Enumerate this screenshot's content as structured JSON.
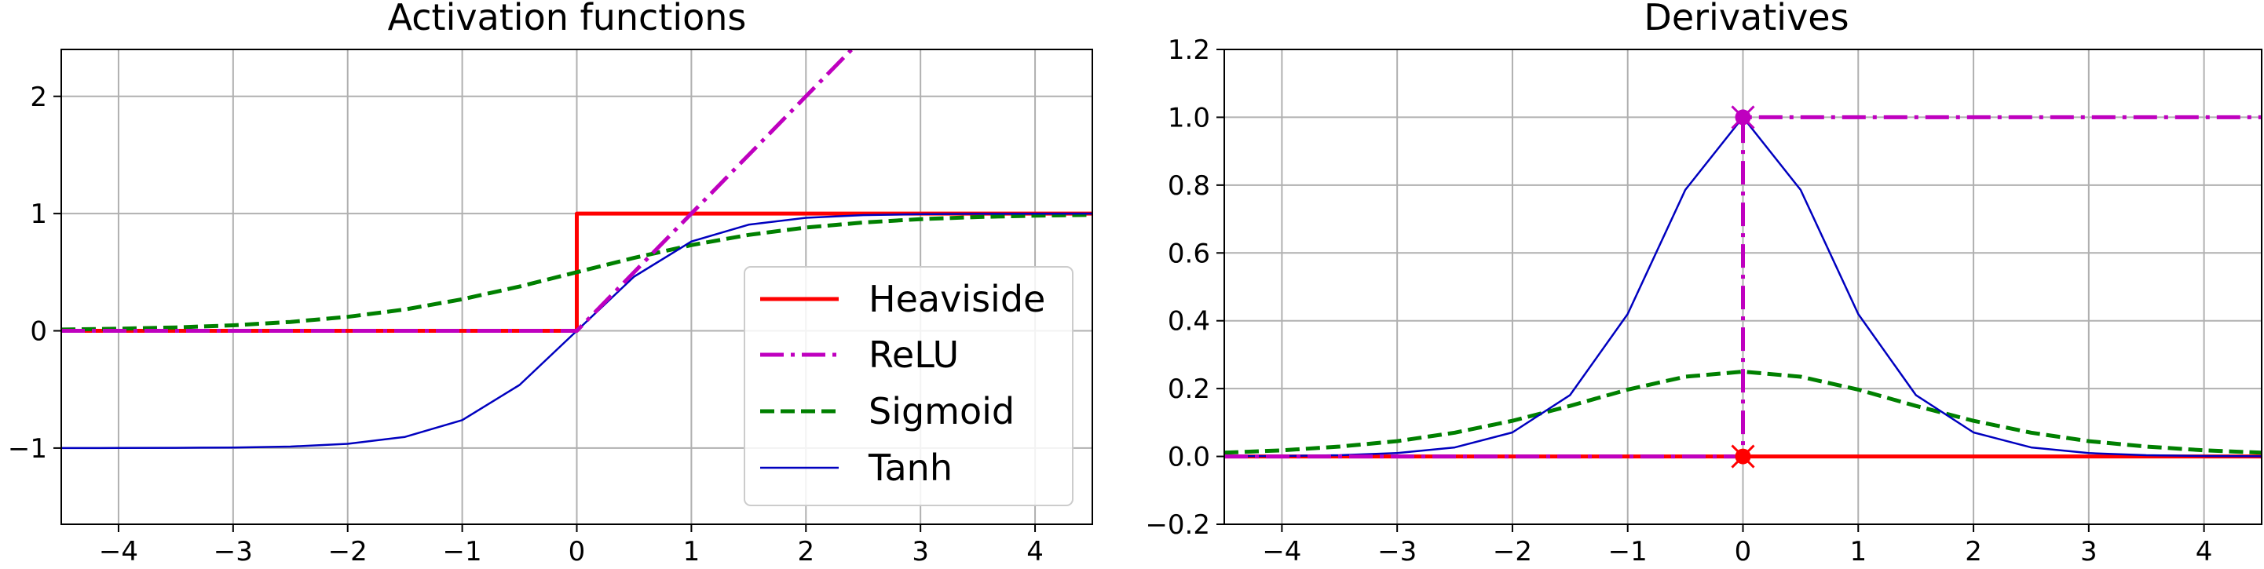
{
  "chart_data": [
    {
      "type": "line",
      "title": "Activation functions",
      "xlabel": "",
      "ylabel": "",
      "xlim": [
        -4.5,
        4.5
      ],
      "ylim": [
        -1.65,
        2.4
      ],
      "xticks": [
        -4,
        -3,
        -2,
        -1,
        0,
        1,
        2,
        3,
        4
      ],
      "xtick_labels": [
        "−4",
        "−3",
        "−2",
        "−1",
        "0",
        "1",
        "2",
        "3",
        "4"
      ],
      "yticks": [
        -1,
        0,
        1,
        2
      ],
      "ytick_labels": [
        "−1",
        "0",
        "1",
        "2"
      ],
      "grid": true,
      "legend": "lower-right",
      "series": [
        {
          "name": "Heaviside",
          "color": "#ff0000",
          "style": "solid",
          "x": [
            -4.5,
            0,
            0,
            4.5
          ],
          "y": [
            0,
            0,
            1,
            1
          ]
        },
        {
          "name": "ReLU",
          "color": "#bf00bf",
          "style": "dashdot",
          "x": [
            -4.5,
            0,
            2.4
          ],
          "y": [
            0,
            0,
            2.4
          ]
        },
        {
          "name": "Sigmoid",
          "color": "#008000",
          "style": "dashed",
          "x": [
            -4.5,
            -4,
            -3.5,
            -3,
            -2.5,
            -2,
            -1.5,
            -1,
            -0.5,
            0,
            0.5,
            1,
            1.5,
            2,
            2.5,
            3,
            3.5,
            4,
            4.5
          ],
          "y": [
            0.011,
            0.018,
            0.029,
            0.047,
            0.076,
            0.119,
            0.182,
            0.269,
            0.378,
            0.5,
            0.622,
            0.731,
            0.818,
            0.881,
            0.924,
            0.953,
            0.971,
            0.982,
            0.989
          ]
        },
        {
          "name": "Tanh",
          "color": "#0000bf",
          "style": "solid",
          "x": [
            -4.5,
            -4,
            -3.5,
            -3,
            -2.5,
            -2,
            -1.5,
            -1,
            -0.5,
            0,
            0.5,
            1,
            1.5,
            2,
            2.5,
            3,
            3.5,
            4,
            4.5
          ],
          "y": [
            -1.0,
            -0.999,
            -0.998,
            -0.995,
            -0.987,
            -0.964,
            -0.905,
            -0.762,
            -0.462,
            0,
            0.462,
            0.762,
            0.905,
            0.964,
            0.987,
            0.995,
            0.998,
            0.999,
            1.0
          ]
        }
      ]
    },
    {
      "type": "line",
      "title": "Derivatives",
      "xlabel": "",
      "ylabel": "",
      "xlim": [
        -4.5,
        4.5
      ],
      "ylim": [
        -0.2,
        1.2
      ],
      "xticks": [
        -4,
        -3,
        -2,
        -1,
        0,
        1,
        2,
        3,
        4
      ],
      "xtick_labels": [
        "−4",
        "−3",
        "−2",
        "−1",
        "0",
        "1",
        "2",
        "3",
        "4"
      ],
      "yticks": [
        -0.2,
        0.0,
        0.2,
        0.4,
        0.6,
        0.8,
        1.0,
        1.2
      ],
      "ytick_labels": [
        "−0.2",
        "0.0",
        "0.2",
        "0.4",
        "0.6",
        "0.8",
        "1.0",
        "1.2"
      ],
      "grid": true,
      "series": [
        {
          "name": "Heaviside",
          "color": "#ff0000",
          "style": "solid",
          "x": [
            -4.5,
            4.5
          ],
          "y": [
            0,
            0
          ],
          "markers": [
            {
              "x": 0,
              "y": 0,
              "symbol": "x"
            },
            {
              "x": 0,
              "y": 0,
              "symbol": "o"
            }
          ]
        },
        {
          "name": "ReLU",
          "color": "#bf00bf",
          "style": "dashdot",
          "x": [
            -4.5,
            0,
            0,
            4.5
          ],
          "y": [
            0,
            0,
            1,
            1
          ],
          "markers": [
            {
              "x": 0,
              "y": 1,
              "symbol": "x"
            },
            {
              "x": 0,
              "y": 1,
              "symbol": "o"
            }
          ]
        },
        {
          "name": "Sigmoid",
          "color": "#008000",
          "style": "dashed",
          "x": [
            -4.5,
            -4,
            -3.5,
            -3,
            -2.5,
            -2,
            -1.5,
            -1,
            -0.5,
            0,
            0.5,
            1,
            1.5,
            2,
            2.5,
            3,
            3.5,
            4,
            4.5
          ],
          "y": [
            0.011,
            0.018,
            0.029,
            0.045,
            0.07,
            0.105,
            0.149,
            0.197,
            0.235,
            0.25,
            0.235,
            0.197,
            0.149,
            0.105,
            0.07,
            0.045,
            0.029,
            0.018,
            0.011
          ]
        },
        {
          "name": "Tanh",
          "color": "#0000bf",
          "style": "solid",
          "x": [
            -4.5,
            -4,
            -3.5,
            -3,
            -2.5,
            -2,
            -1.5,
            -1,
            -0.5,
            0,
            0.5,
            1,
            1.5,
            2,
            2.5,
            3,
            3.5,
            4,
            4.5
          ],
          "y": [
            0.0005,
            0.0013,
            0.0036,
            0.0099,
            0.0266,
            0.0707,
            0.181,
            0.42,
            0.786,
            1.0,
            0.786,
            0.42,
            0.181,
            0.0707,
            0.0266,
            0.0099,
            0.0036,
            0.0013,
            0.0005
          ]
        }
      ]
    }
  ]
}
